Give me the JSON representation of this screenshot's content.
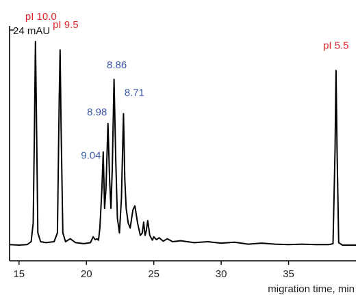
{
  "colors": {
    "trace": "#000000",
    "standard_label": "#e0242b",
    "peak_label": "#3a58a8",
    "axis": "#000000"
  },
  "chart_data": {
    "type": "line",
    "title": "",
    "xlabel": "migration time, min",
    "ylabel": "",
    "xlim": [
      14.3,
      40.0
    ],
    "ylim": [
      -2.7,
      47.7
    ],
    "x_ticks": [
      15,
      20,
      25,
      30,
      35
    ],
    "x_tick_labels": [
      "15",
      "20",
      "25",
      "30",
      "35"
    ],
    "y_scale_bar": {
      "label": "24 mAU",
      "value": 24
    },
    "series": [
      {
        "values": [
          [
            14.3,
            0.6
          ],
          [
            15.0,
            0.5
          ],
          [
            15.6,
            0.6
          ],
          [
            15.9,
            1.2
          ],
          [
            16.05,
            5
          ],
          [
            16.15,
            25
          ],
          [
            16.22,
            42.0
          ],
          [
            16.3,
            25
          ],
          [
            16.4,
            3
          ],
          [
            16.6,
            1.2
          ],
          [
            17.0,
            1.0
          ],
          [
            17.6,
            1.2
          ],
          [
            17.85,
            3
          ],
          [
            17.98,
            30
          ],
          [
            18.05,
            40.3
          ],
          [
            18.12,
            25
          ],
          [
            18.25,
            3
          ],
          [
            18.45,
            1.2
          ],
          [
            18.8,
            1.8
          ],
          [
            19.2,
            1.0
          ],
          [
            19.8,
            0.8
          ],
          [
            20.3,
            1.0
          ],
          [
            20.5,
            2.2
          ],
          [
            20.65,
            1.6
          ],
          [
            20.8,
            1.8
          ],
          [
            20.9,
            1.5
          ],
          [
            21.0,
            4
          ],
          [
            21.15,
            12
          ],
          [
            21.25,
            19.5
          ],
          [
            21.35,
            8
          ],
          [
            21.45,
            12
          ],
          [
            21.6,
            25.3
          ],
          [
            21.72,
            14
          ],
          [
            21.82,
            8
          ],
          [
            21.92,
            16
          ],
          [
            22.05,
            34.3
          ],
          [
            22.18,
            18
          ],
          [
            22.3,
            6
          ],
          [
            22.45,
            3
          ],
          [
            22.6,
            10
          ],
          [
            22.75,
            27.3
          ],
          [
            22.85,
            14
          ],
          [
            22.95,
            8
          ],
          [
            23.1,
            5
          ],
          [
            23.25,
            4
          ],
          [
            23.45,
            7.7
          ],
          [
            23.6,
            8.5
          ],
          [
            23.8,
            5
          ],
          [
            24.0,
            2.5
          ],
          [
            24.15,
            3
          ],
          [
            24.25,
            5.2
          ],
          [
            24.35,
            2.5
          ],
          [
            24.45,
            3.5
          ],
          [
            24.55,
            5.5
          ],
          [
            24.7,
            2.5
          ],
          [
            24.9,
            1.5
          ],
          [
            25.0,
            2.2
          ],
          [
            25.2,
            1.6
          ],
          [
            25.4,
            2.0
          ],
          [
            25.7,
            1.3
          ],
          [
            26.0,
            1.8
          ],
          [
            26.4,
            1.2
          ],
          [
            27.0,
            1.4
          ],
          [
            28.0,
            1.0
          ],
          [
            29.0,
            1.2
          ],
          [
            30.0,
            0.9
          ],
          [
            31.0,
            1.1
          ],
          [
            32.0,
            0.7
          ],
          [
            33.0,
            0.9
          ],
          [
            34.0,
            0.7
          ],
          [
            35.0,
            0.6
          ],
          [
            36.0,
            0.7
          ],
          [
            37.0,
            0.6
          ],
          [
            38.0,
            0.6
          ],
          [
            38.3,
            0.8
          ],
          [
            38.45,
            20
          ],
          [
            38.52,
            36.1
          ],
          [
            38.6,
            20
          ],
          [
            38.72,
            1.0
          ],
          [
            39.0,
            0.5
          ],
          [
            40.0,
            0.5
          ]
        ]
      }
    ],
    "annotations": [
      {
        "text": "pI 10.0",
        "x": 16.22,
        "y": 42.0,
        "group": "standard"
      },
      {
        "text": "pI 9.5",
        "x": 18.05,
        "y": 40.3,
        "group": "standard"
      },
      {
        "text": "pI 5.5",
        "x": 38.52,
        "y": 36.1,
        "group": "standard"
      },
      {
        "text": "9.04",
        "x": 21.25,
        "y": 19.5,
        "group": "peak"
      },
      {
        "text": "8.98",
        "x": 21.6,
        "y": 25.3,
        "group": "peak"
      },
      {
        "text": "8.86",
        "x": 22.05,
        "y": 34.3,
        "group": "peak"
      },
      {
        "text": "8.71",
        "x": 22.75,
        "y": 27.3,
        "group": "peak"
      }
    ],
    "grid": false,
    "legend": "none"
  }
}
